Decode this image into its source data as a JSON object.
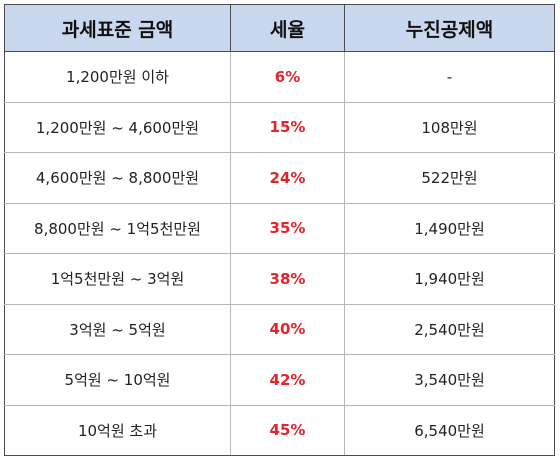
{
  "header": {
    "col1": "과세표준 금액",
    "col2": "세율",
    "col3": "누진공제액"
  },
  "rows": [
    {
      "bracket": "1,200만원 이하",
      "rate": "6%",
      "deduction": "-"
    },
    {
      "bracket": "1,200만원 ~ 4,600만원",
      "rate": "15%",
      "deduction": "108만원"
    },
    {
      "bracket": "4,600만원 ~ 8,800만원",
      "rate": "24%",
      "deduction": "522만원"
    },
    {
      "bracket": "8,800만원 ~ 1억5천만원",
      "rate": "35%",
      "deduction": "1,490만원"
    },
    {
      "bracket": "1억5천만원 ~ 3억원",
      "rate": "38%",
      "deduction": "1,940만원"
    },
    {
      "bracket": "3억원 ~ 5억원",
      "rate": "40%",
      "deduction": "2,540만원"
    },
    {
      "bracket": "5억원 ~ 10억원",
      "rate": "42%",
      "deduction": "3,540만원"
    },
    {
      "bracket": "10억원 초과",
      "rate": "45%",
      "deduction": "6,540만원"
    }
  ],
  "colors": {
    "header_bg": "#c9d7ef",
    "rate_text": "#e0262c",
    "grid": "#b7b7b7"
  }
}
